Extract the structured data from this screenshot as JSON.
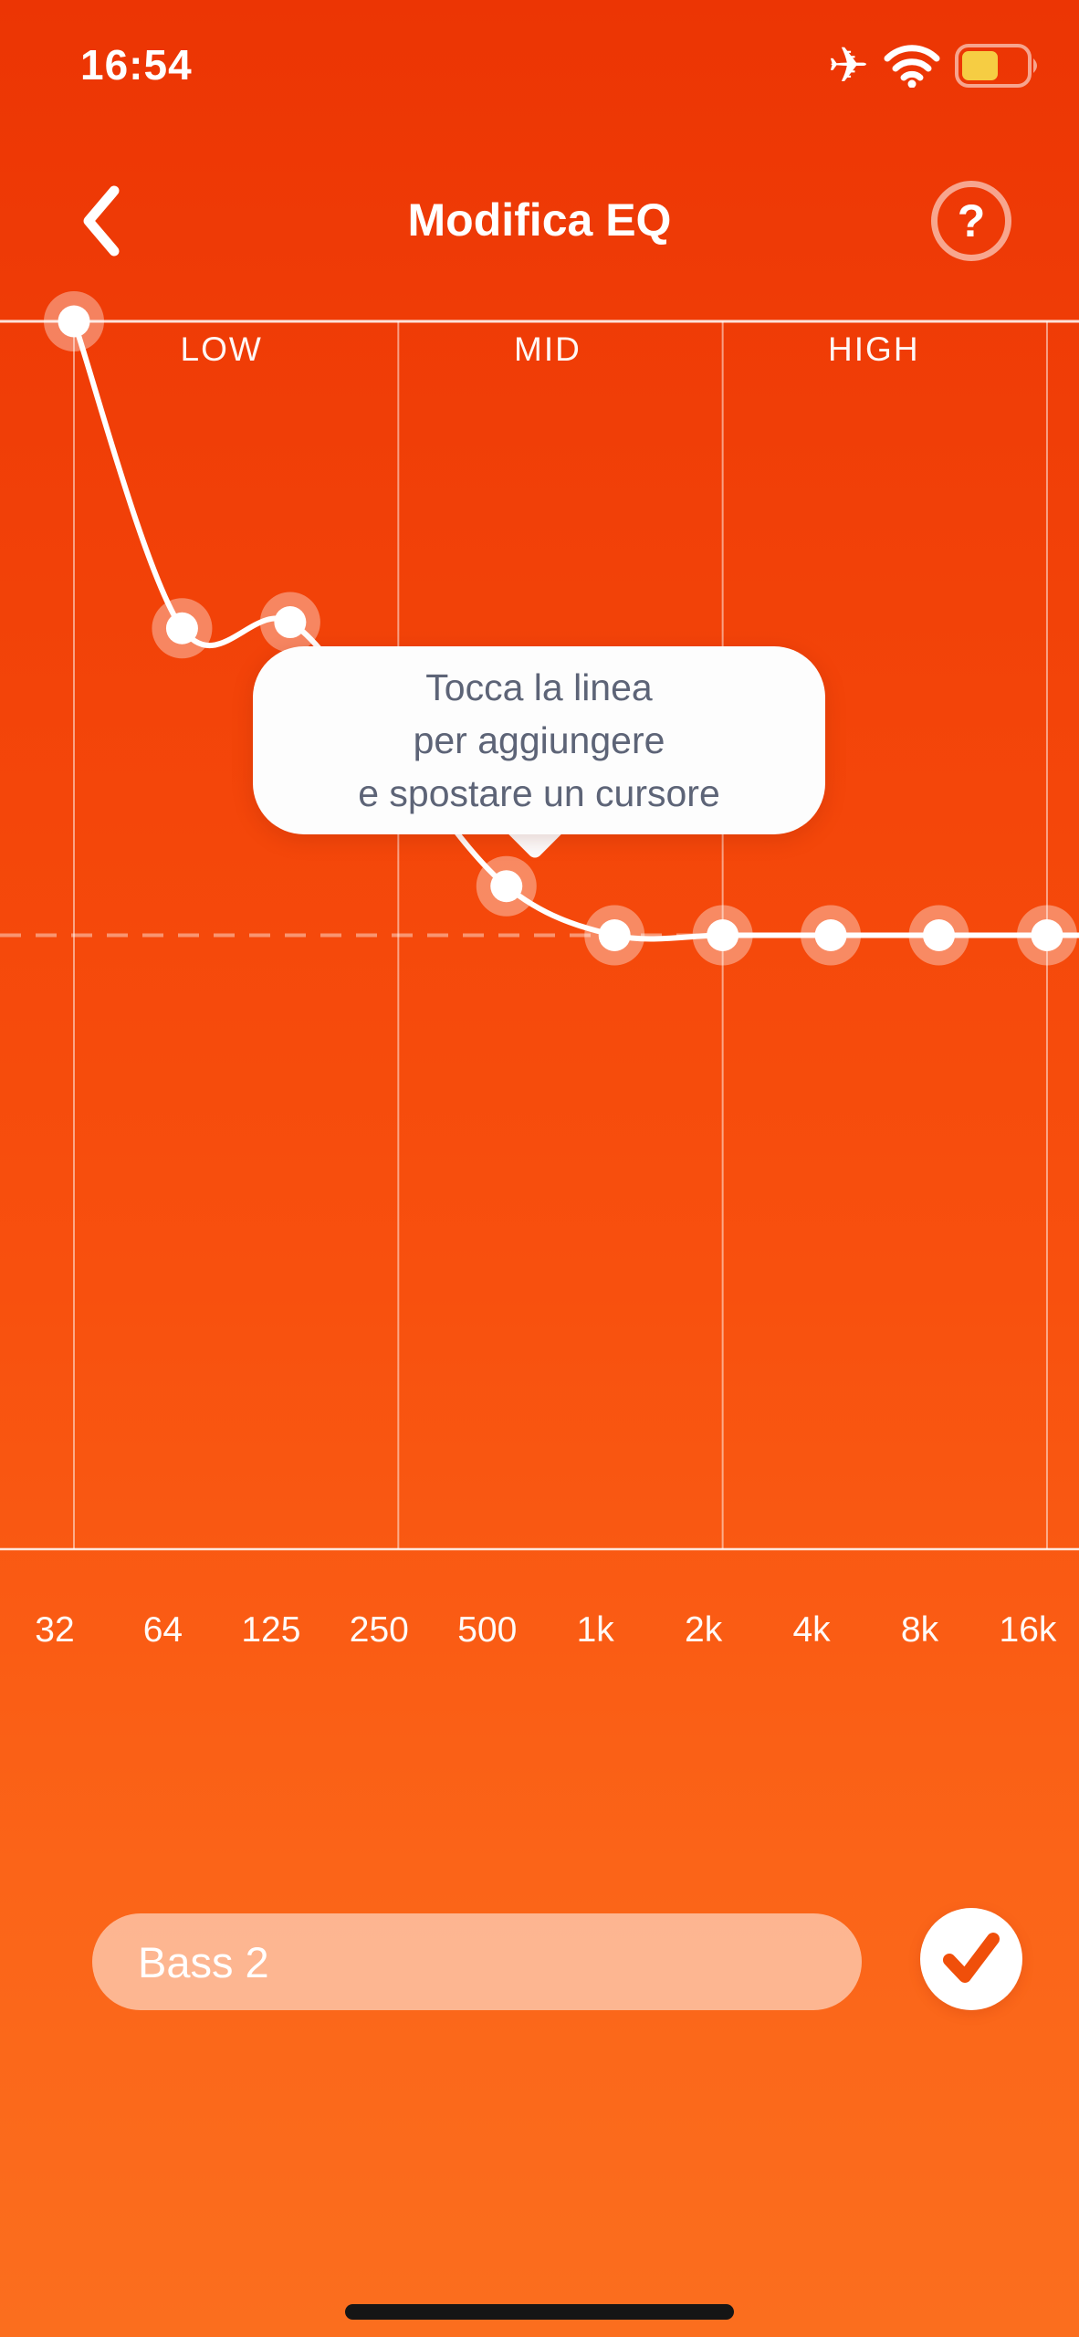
{
  "status_bar": {
    "time": "16:54",
    "airplane_icon": "airplane-mode-on",
    "wifi_icon": "wifi-full",
    "battery": {
      "fill_ratio": 0.58,
      "fill_color": "#f6cd43",
      "low_power_mode": true
    }
  },
  "header": {
    "title": "Modifica EQ",
    "back_icon": "chevron-left",
    "help_label": "?"
  },
  "tooltip": {
    "lines": [
      "Tocca la linea",
      "per aggiungere",
      "e spostare un cursore"
    ],
    "text_color": "#5d6477"
  },
  "chart_data": {
    "type": "line",
    "title": "EQ curve",
    "categories": [
      "32",
      "64",
      "125",
      "250",
      "500",
      "1k",
      "2k",
      "4k",
      "8k",
      "16k"
    ],
    "values_normalized_gain": [
      1.0,
      0.5,
      0.51,
      0.29,
      0.08,
      0,
      0,
      0,
      0,
      0
    ],
    "ylim": [
      -1,
      1
    ],
    "zero_line_style": "dashed",
    "sections": [
      {
        "label": "LOW",
        "from": "32",
        "to": "250"
      },
      {
        "label": "MID",
        "from": "250",
        "to": "2k"
      },
      {
        "label": "HIGH",
        "from": "2k",
        "to": "16k"
      }
    ],
    "note_point_hidden_behind_tooltip": "250"
  },
  "colors": {
    "curve": "#ffffff",
    "grid": "rgba(255,255,255,0.5)",
    "border_line": "rgba(255,255,255,0.85)",
    "zero_dash": "rgba(255,255,255,0.42)",
    "halo": "rgba(255,255,255,0.36)",
    "accent_orange": "#f04f0a"
  },
  "preset": {
    "name_value": "Bass 2",
    "confirm_icon": "checkmark"
  }
}
